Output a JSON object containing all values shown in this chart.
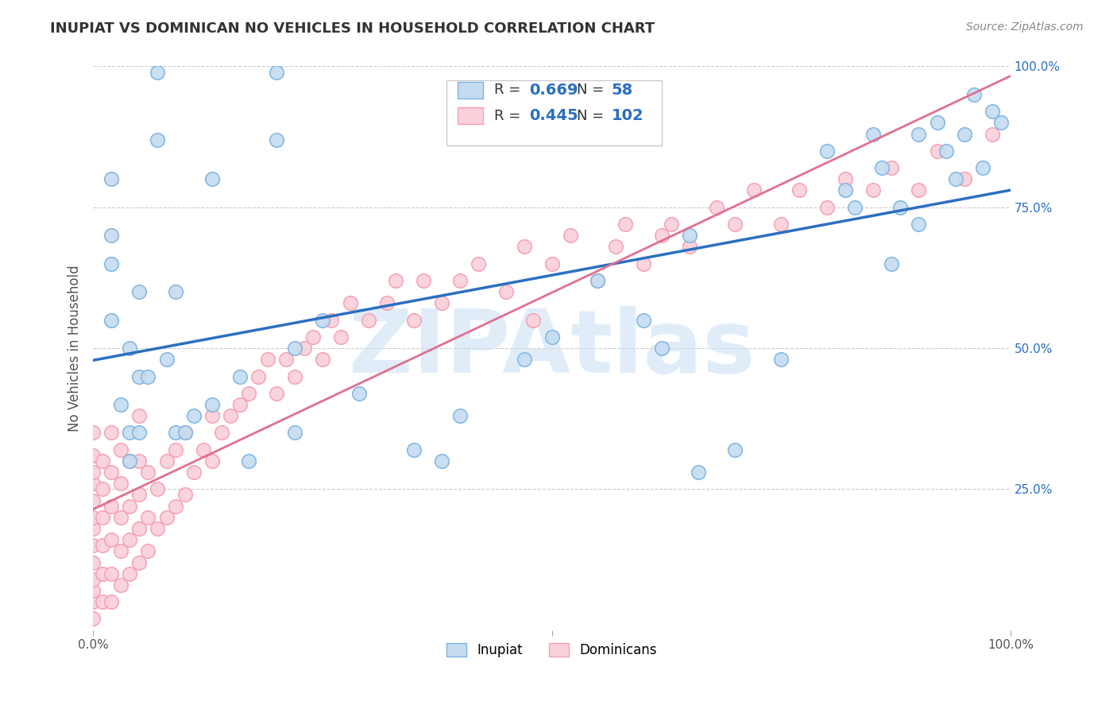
{
  "title": "INUPIAT VS DOMINICAN NO VEHICLES IN HOUSEHOLD CORRELATION CHART",
  "source": "Source: ZipAtlas.com",
  "ylabel": "No Vehicles in Household",
  "ytick_labels": [
    "25.0%",
    "50.0%",
    "75.0%",
    "100.0%"
  ],
  "ytick_positions": [
    0.25,
    0.5,
    0.75,
    1.0
  ],
  "inupiat_R": 0.669,
  "inupiat_N": 58,
  "dominican_R": 0.445,
  "dominican_N": 102,
  "inupiat_fill": "#c5dcf0",
  "inupiat_edge": "#7eb3e0",
  "dominican_fill": "#fad0da",
  "dominican_edge": "#f4a0b0",
  "inupiat_line_color": "#2b6fc2",
  "dominican_line_color": "#e07090",
  "watermark": "ZIPAtlas",
  "watermark_color": "#c8dff5",
  "background_color": "#ffffff",
  "grid_color": "#cccccc",
  "title_color": "#333333",
  "source_color": "#888888",
  "inupiat_points_x": [
    0.07,
    0.2,
    0.07,
    0.2,
    0.02,
    0.13,
    0.02,
    0.02,
    0.02,
    0.03,
    0.04,
    0.04,
    0.04,
    0.05,
    0.05,
    0.05,
    0.06,
    0.08,
    0.09,
    0.09,
    0.1,
    0.11,
    0.13,
    0.16,
    0.17,
    0.22,
    0.22,
    0.25,
    0.29,
    0.35,
    0.38,
    0.4,
    0.47,
    0.5,
    0.55,
    0.6,
    0.62,
    0.65,
    0.66,
    0.7,
    0.75,
    0.8,
    0.82,
    0.83,
    0.85,
    0.86,
    0.87,
    0.88,
    0.9,
    0.9,
    0.92,
    0.93,
    0.94,
    0.95,
    0.96,
    0.97,
    0.98,
    0.99
  ],
  "inupiat_points_y": [
    0.99,
    0.99,
    0.87,
    0.87,
    0.8,
    0.8,
    0.7,
    0.65,
    0.55,
    0.4,
    0.35,
    0.5,
    0.3,
    0.35,
    0.45,
    0.6,
    0.45,
    0.48,
    0.6,
    0.35,
    0.35,
    0.38,
    0.4,
    0.45,
    0.3,
    0.5,
    0.35,
    0.55,
    0.42,
    0.32,
    0.3,
    0.38,
    0.48,
    0.52,
    0.62,
    0.55,
    0.5,
    0.7,
    0.28,
    0.32,
    0.48,
    0.85,
    0.78,
    0.75,
    0.88,
    0.82,
    0.65,
    0.75,
    0.88,
    0.72,
    0.9,
    0.85,
    0.8,
    0.88,
    0.95,
    0.82,
    0.92,
    0.9
  ],
  "dominican_points_x": [
    0.0,
    0.0,
    0.0,
    0.0,
    0.0,
    0.0,
    0.0,
    0.0,
    0.0,
    0.0,
    0.0,
    0.0,
    0.0,
    0.01,
    0.01,
    0.01,
    0.01,
    0.01,
    0.01,
    0.02,
    0.02,
    0.02,
    0.02,
    0.02,
    0.02,
    0.03,
    0.03,
    0.03,
    0.03,
    0.03,
    0.04,
    0.04,
    0.04,
    0.04,
    0.05,
    0.05,
    0.05,
    0.05,
    0.05,
    0.06,
    0.06,
    0.06,
    0.07,
    0.07,
    0.08,
    0.08,
    0.09,
    0.09,
    0.1,
    0.1,
    0.11,
    0.12,
    0.13,
    0.13,
    0.14,
    0.15,
    0.16,
    0.17,
    0.18,
    0.19,
    0.2,
    0.21,
    0.22,
    0.23,
    0.24,
    0.25,
    0.26,
    0.27,
    0.28,
    0.3,
    0.32,
    0.33,
    0.35,
    0.36,
    0.38,
    0.4,
    0.42,
    0.45,
    0.47,
    0.48,
    0.5,
    0.52,
    0.55,
    0.57,
    0.58,
    0.6,
    0.62,
    0.63,
    0.65,
    0.68,
    0.7,
    0.72,
    0.75,
    0.77,
    0.8,
    0.82,
    0.85,
    0.87,
    0.9,
    0.92,
    0.95,
    0.98
  ],
  "dominican_points_y": [
    0.02,
    0.05,
    0.07,
    0.09,
    0.12,
    0.15,
    0.18,
    0.2,
    0.23,
    0.26,
    0.28,
    0.31,
    0.35,
    0.05,
    0.1,
    0.15,
    0.2,
    0.25,
    0.3,
    0.05,
    0.1,
    0.16,
    0.22,
    0.28,
    0.35,
    0.08,
    0.14,
    0.2,
    0.26,
    0.32,
    0.1,
    0.16,
    0.22,
    0.3,
    0.12,
    0.18,
    0.24,
    0.3,
    0.38,
    0.14,
    0.2,
    0.28,
    0.18,
    0.25,
    0.2,
    0.3,
    0.22,
    0.32,
    0.24,
    0.35,
    0.28,
    0.32,
    0.3,
    0.38,
    0.35,
    0.38,
    0.4,
    0.42,
    0.45,
    0.48,
    0.42,
    0.48,
    0.45,
    0.5,
    0.52,
    0.48,
    0.55,
    0.52,
    0.58,
    0.55,
    0.58,
    0.62,
    0.55,
    0.62,
    0.58,
    0.62,
    0.65,
    0.6,
    0.68,
    0.55,
    0.65,
    0.7,
    0.62,
    0.68,
    0.72,
    0.65,
    0.7,
    0.72,
    0.68,
    0.75,
    0.72,
    0.78,
    0.72,
    0.78,
    0.75,
    0.8,
    0.78,
    0.82,
    0.78,
    0.85,
    0.8,
    0.88
  ]
}
